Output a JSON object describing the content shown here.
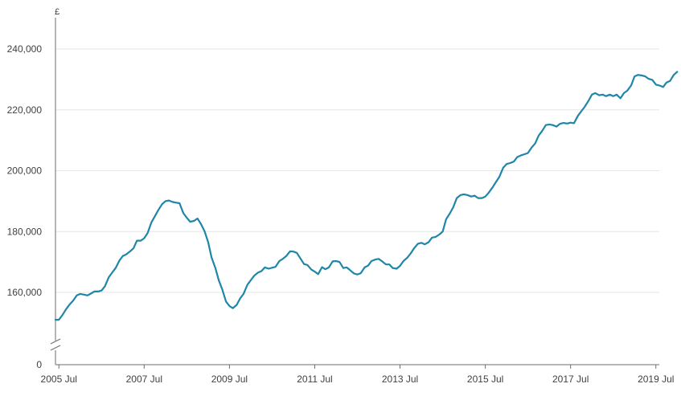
{
  "chart_data": {
    "type": "line",
    "y_unit_label": "£",
    "ylim": [
      140000,
      245000
    ],
    "yticks": [
      {
        "value": 160000,
        "label": "160,000"
      },
      {
        "value": 180000,
        "label": "180,000"
      },
      {
        "value": 200000,
        "label": "200,000"
      },
      {
        "value": 220000,
        "label": "220,000"
      },
      {
        "value": 240000,
        "label": "240,000"
      }
    ],
    "y_zero_label": "0",
    "axis_break": true,
    "grid": "horizontal",
    "xlim": [
      2005.42,
      2019.58
    ],
    "xticks": [
      {
        "value": 2005.5,
        "label": "2005 Jul"
      },
      {
        "value": 2007.5,
        "label": "2007 Jul"
      },
      {
        "value": 2009.5,
        "label": "2009 Jul"
      },
      {
        "value": 2011.5,
        "label": "2011 Jul"
      },
      {
        "value": 2013.5,
        "label": "2013 Jul"
      },
      {
        "value": 2015.5,
        "label": "2015 Jul"
      },
      {
        "value": 2017.5,
        "label": "2017 Jul"
      },
      {
        "value": 2019.5,
        "label": "2019 Jul"
      }
    ],
    "color": "#1f86a8",
    "series": [
      {
        "points": [
          [
            2005.42,
            151000
          ],
          [
            2005.5,
            151000
          ],
          [
            2005.58,
            152500
          ],
          [
            2005.67,
            154500
          ],
          [
            2005.75,
            156000
          ],
          [
            2005.83,
            157200
          ],
          [
            2005.92,
            159000
          ],
          [
            2006.0,
            159500
          ],
          [
            2006.08,
            159300
          ],
          [
            2006.17,
            159000
          ],
          [
            2006.25,
            159600
          ],
          [
            2006.33,
            160300
          ],
          [
            2006.42,
            160300
          ],
          [
            2006.5,
            160600
          ],
          [
            2006.58,
            162000
          ],
          [
            2006.67,
            165000
          ],
          [
            2006.75,
            166500
          ],
          [
            2006.83,
            168000
          ],
          [
            2006.92,
            170500
          ],
          [
            2007.0,
            172000
          ],
          [
            2007.08,
            172500
          ],
          [
            2007.17,
            173500
          ],
          [
            2007.25,
            174500
          ],
          [
            2007.33,
            177000
          ],
          [
            2007.42,
            177000
          ],
          [
            2007.5,
            177800
          ],
          [
            2007.58,
            179500
          ],
          [
            2007.67,
            183000
          ],
          [
            2007.75,
            185000
          ],
          [
            2007.83,
            187000
          ],
          [
            2007.92,
            189000
          ],
          [
            2008.0,
            190000
          ],
          [
            2008.08,
            190200
          ],
          [
            2008.17,
            189700
          ],
          [
            2008.25,
            189500
          ],
          [
            2008.33,
            189300
          ],
          [
            2008.42,
            186000
          ],
          [
            2008.5,
            184500
          ],
          [
            2008.58,
            183200
          ],
          [
            2008.67,
            183500
          ],
          [
            2008.75,
            184300
          ],
          [
            2008.83,
            182500
          ],
          [
            2008.92,
            180000
          ],
          [
            2009.0,
            176500
          ],
          [
            2009.08,
            171500
          ],
          [
            2009.17,
            168000
          ],
          [
            2009.25,
            164000
          ],
          [
            2009.33,
            161000
          ],
          [
            2009.42,
            157000
          ],
          [
            2009.5,
            155500
          ],
          [
            2009.58,
            154800
          ],
          [
            2009.67,
            155900
          ],
          [
            2009.75,
            158000
          ],
          [
            2009.83,
            159500
          ],
          [
            2009.92,
            162500
          ],
          [
            2010.0,
            164000
          ],
          [
            2010.08,
            165500
          ],
          [
            2010.17,
            166500
          ],
          [
            2010.25,
            167000
          ],
          [
            2010.33,
            168200
          ],
          [
            2010.42,
            167800
          ],
          [
            2010.5,
            168100
          ],
          [
            2010.58,
            168400
          ],
          [
            2010.67,
            170300
          ],
          [
            2010.75,
            171000
          ],
          [
            2010.83,
            171900
          ],
          [
            2010.92,
            173500
          ],
          [
            2011.0,
            173400
          ],
          [
            2011.08,
            173000
          ],
          [
            2011.17,
            171000
          ],
          [
            2011.25,
            169300
          ],
          [
            2011.33,
            169000
          ],
          [
            2011.42,
            167500
          ],
          [
            2011.5,
            166800
          ],
          [
            2011.58,
            166000
          ],
          [
            2011.67,
            168300
          ],
          [
            2011.75,
            167600
          ],
          [
            2011.83,
            168200
          ],
          [
            2011.92,
            170200
          ],
          [
            2012.0,
            170300
          ],
          [
            2012.08,
            170000
          ],
          [
            2012.17,
            168000
          ],
          [
            2012.25,
            168200
          ],
          [
            2012.33,
            167300
          ],
          [
            2012.42,
            166200
          ],
          [
            2012.5,
            165900
          ],
          [
            2012.58,
            166300
          ],
          [
            2012.67,
            168200
          ],
          [
            2012.75,
            168800
          ],
          [
            2012.83,
            170300
          ],
          [
            2012.92,
            170800
          ],
          [
            2013.0,
            171000
          ],
          [
            2013.08,
            170200
          ],
          [
            2013.17,
            169200
          ],
          [
            2013.25,
            169200
          ],
          [
            2013.33,
            168000
          ],
          [
            2013.42,
            167800
          ],
          [
            2013.5,
            168700
          ],
          [
            2013.58,
            170300
          ],
          [
            2013.67,
            171400
          ],
          [
            2013.75,
            172800
          ],
          [
            2013.83,
            174500
          ],
          [
            2013.92,
            176000
          ],
          [
            2014.0,
            176300
          ],
          [
            2014.08,
            175800
          ],
          [
            2014.17,
            176500
          ],
          [
            2014.25,
            178000
          ],
          [
            2014.33,
            178200
          ],
          [
            2014.42,
            179000
          ],
          [
            2014.5,
            180000
          ],
          [
            2014.58,
            184000
          ],
          [
            2014.67,
            186000
          ],
          [
            2014.75,
            188000
          ],
          [
            2014.83,
            191000
          ],
          [
            2014.92,
            192000
          ],
          [
            2015.0,
            192200
          ],
          [
            2015.08,
            192000
          ],
          [
            2015.17,
            191500
          ],
          [
            2015.25,
            191800
          ],
          [
            2015.33,
            191000
          ],
          [
            2015.42,
            191000
          ],
          [
            2015.5,
            191500
          ],
          [
            2015.58,
            192800
          ],
          [
            2015.67,
            194500
          ],
          [
            2015.75,
            196300
          ],
          [
            2015.83,
            198000
          ],
          [
            2015.92,
            201000
          ],
          [
            2016.0,
            202200
          ],
          [
            2016.08,
            202500
          ],
          [
            2016.17,
            203000
          ],
          [
            2016.25,
            204500
          ],
          [
            2016.33,
            205000
          ],
          [
            2016.42,
            205400
          ],
          [
            2016.5,
            205800
          ],
          [
            2016.58,
            207500
          ],
          [
            2016.67,
            209000
          ],
          [
            2016.75,
            211500
          ],
          [
            2016.83,
            213000
          ],
          [
            2016.92,
            215000
          ],
          [
            2017.0,
            215200
          ],
          [
            2017.08,
            215000
          ],
          [
            2017.17,
            214500
          ],
          [
            2017.25,
            215400
          ],
          [
            2017.33,
            215700
          ],
          [
            2017.42,
            215500
          ],
          [
            2017.5,
            215800
          ],
          [
            2017.58,
            215600
          ],
          [
            2017.67,
            218000
          ],
          [
            2017.75,
            219500
          ],
          [
            2017.83,
            221000
          ],
          [
            2017.92,
            223000
          ],
          [
            2018.0,
            225000
          ],
          [
            2018.08,
            225500
          ],
          [
            2018.17,
            224800
          ],
          [
            2018.25,
            225000
          ],
          [
            2018.33,
            224500
          ],
          [
            2018.42,
            225000
          ],
          [
            2018.5,
            224500
          ],
          [
            2018.58,
            225000
          ],
          [
            2018.67,
            223800
          ],
          [
            2018.75,
            225500
          ],
          [
            2018.83,
            226300
          ],
          [
            2018.92,
            228000
          ],
          [
            2019.0,
            231000
          ],
          [
            2019.08,
            231500
          ],
          [
            2019.17,
            231300
          ],
          [
            2019.25,
            231000
          ],
          [
            2019.33,
            230200
          ],
          [
            2019.42,
            229800
          ],
          [
            2019.5,
            228300
          ],
          [
            2019.58,
            228000
          ],
          [
            2019.67,
            227500
          ],
          [
            2019.75,
            229000
          ],
          [
            2019.83,
            229500
          ],
          [
            2019.92,
            231500
          ],
          [
            2020.0,
            232500
          ]
        ]
      }
    ]
  }
}
